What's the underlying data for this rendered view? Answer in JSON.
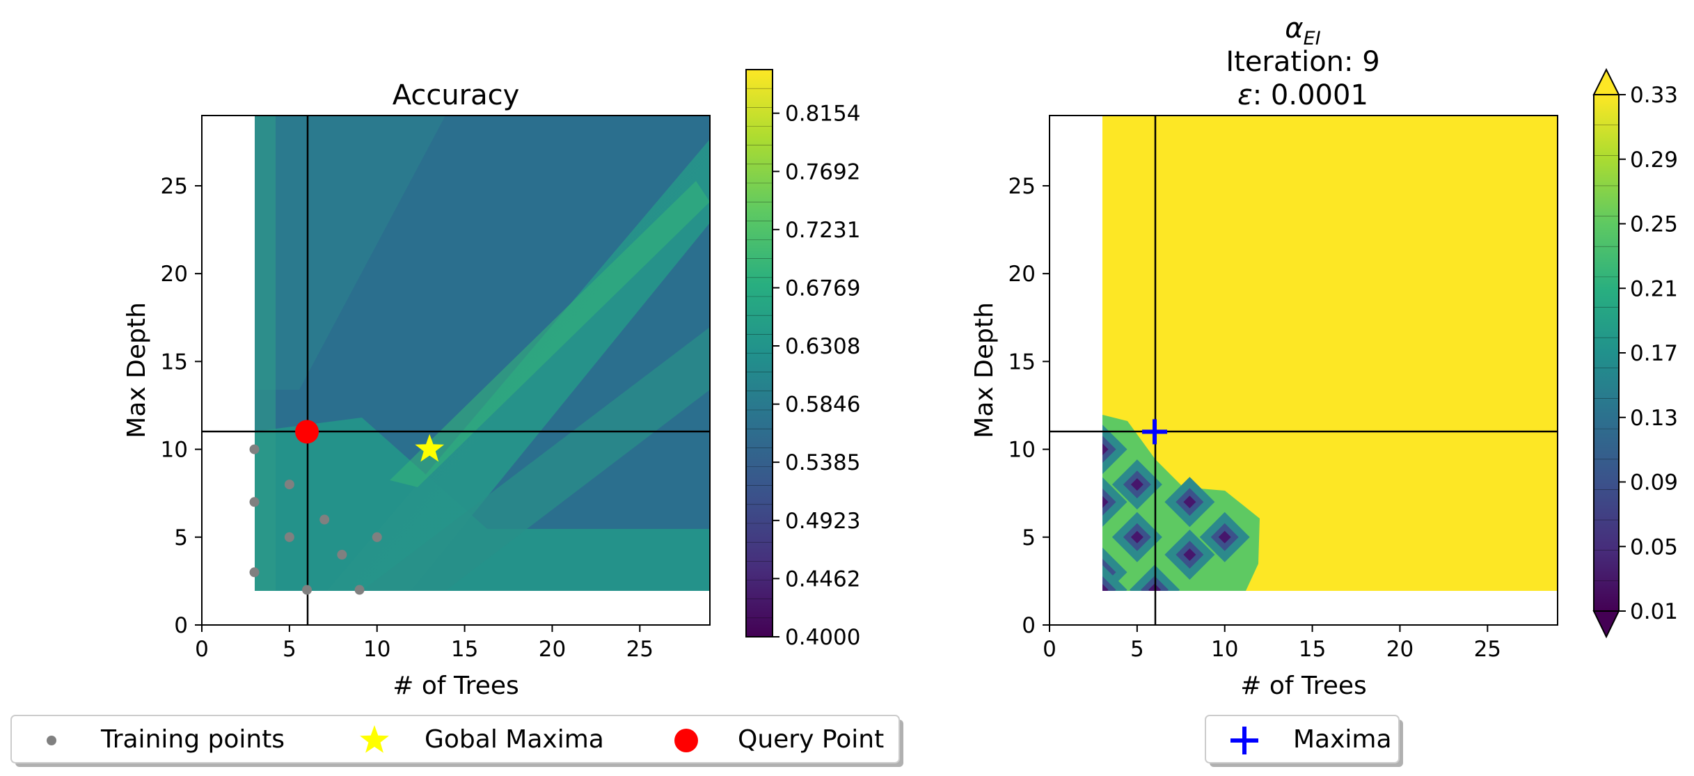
{
  "chart_data": [
    {
      "type": "heatmap",
      "title": "Accuracy",
      "xlabel": "# of Trees",
      "ylabel": "Max Depth",
      "xlim": [
        0,
        29
      ],
      "ylim": [
        0,
        29
      ],
      "x_ticks": [
        "0",
        "5",
        "10",
        "15",
        "20",
        "25"
      ],
      "y_ticks": [
        "0",
        "5",
        "10",
        "15",
        "20",
        "25"
      ],
      "data_extent": {
        "x": [
          3,
          29
        ],
        "y": [
          2,
          29
        ]
      },
      "colormap": "viridis",
      "colorbar": {
        "min": 0.4,
        "max": 0.85,
        "tick_labels": [
          "0.4000",
          "0.4462",
          "0.4923",
          "0.5385",
          "0.5846",
          "0.6308",
          "0.6769",
          "0.7231",
          "0.7692",
          "0.8154"
        ],
        "levels": 30
      },
      "training_points": [
        [
          3,
          10
        ],
        [
          3,
          7
        ],
        [
          3,
          3
        ],
        [
          5,
          8
        ],
        [
          5,
          5
        ],
        [
          6,
          2
        ],
        [
          7,
          6
        ],
        [
          8,
          4
        ],
        [
          9,
          2
        ],
        [
          10,
          5
        ]
      ],
      "global_maxima": [
        13,
        10
      ],
      "query_point": [
        6,
        11
      ],
      "crosshair": {
        "x": 6,
        "y": 11
      },
      "legend": {
        "placement": "bottom",
        "entries": [
          {
            "label": "Training points",
            "marker": "dot",
            "color": "#808080"
          },
          {
            "label": "Gobal Maxima",
            "marker": "star",
            "color": "#ffff00"
          },
          {
            "label": "Query Point",
            "marker": "circle",
            "color": "#ff0000"
          }
        ]
      }
    },
    {
      "type": "heatmap",
      "title_lines": [
        "α",
        "EI",
        "Iteration: 9",
        "ε",
        ": 0.0001"
      ],
      "xlabel": "# of Trees",
      "ylabel": "Max Depth",
      "xlim": [
        0,
        29
      ],
      "ylim": [
        0,
        29
      ],
      "x_ticks": [
        "0",
        "5",
        "10",
        "15",
        "20",
        "25"
      ],
      "y_ticks": [
        "0",
        "5",
        "10",
        "15",
        "20",
        "25"
      ],
      "data_extent": {
        "x": [
          3,
          29
        ],
        "y": [
          2,
          29
        ]
      },
      "colormap": "viridis",
      "colorbar": {
        "min": 0.01,
        "max": 0.33,
        "tick_labels": [
          "0.01",
          "0.05",
          "0.09",
          "0.13",
          "0.17",
          "0.21",
          "0.25",
          "0.29",
          "0.33"
        ],
        "levels": 17,
        "extend": "both"
      },
      "low_points": [
        [
          3,
          10
        ],
        [
          5,
          8
        ],
        [
          3,
          7
        ],
        [
          8,
          7
        ],
        [
          5,
          5
        ],
        [
          10,
          5
        ],
        [
          3,
          3
        ],
        [
          8,
          4
        ],
        [
          6,
          2
        ],
        [
          3,
          2
        ]
      ],
      "maxima": [
        6,
        11
      ],
      "crosshair": {
        "x": 6,
        "y": 11
      },
      "legend": {
        "placement": "bottom",
        "entries": [
          {
            "label": "Maxima",
            "marker": "plus",
            "color": "#0000ff"
          }
        ]
      }
    }
  ]
}
